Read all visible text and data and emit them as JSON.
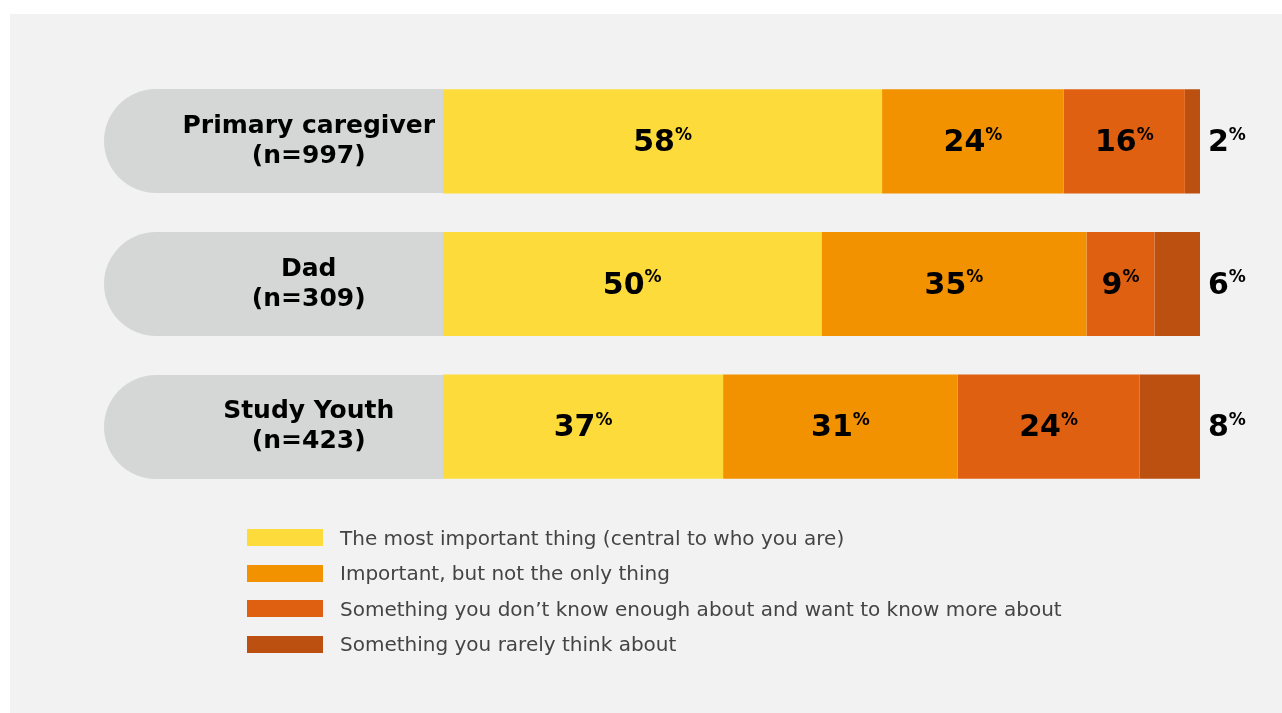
{
  "chart_data": {
    "type": "bar",
    "orientation": "horizontal",
    "stacked": true,
    "xlim": [
      0,
      100
    ],
    "tick_labels": false,
    "legend": "bottom",
    "categories": [
      "Primary caregiver\n(n=997)",
      "Dad\n(n=309)",
      "Study Youth\n(n=423)"
    ],
    "series": [
      {
        "name": "The most important thing (central to who you are)",
        "color": "#fddb3a",
        "values": [
          58,
          50,
          37
        ],
        "value_labels": [
          "58%",
          "50%",
          "37%"
        ]
      },
      {
        "name": "Important, but not the only thing",
        "color": "#f39200",
        "values": [
          24,
          35,
          31
        ],
        "value_labels": [
          "24%",
          "35%",
          "31%"
        ]
      },
      {
        "name": "Something you don’t know enough about and want to know more about",
        "color": "#e06012",
        "values": [
          16,
          9,
          24
        ],
        "value_labels": [
          "16%",
          "9%",
          "24%"
        ]
      },
      {
        "name": "Something you rarely think about",
        "color": "#bb5010",
        "values": [
          2,
          6,
          8
        ],
        "value_labels": [
          "2%",
          "6%",
          "8%"
        ]
      }
    ]
  }
}
